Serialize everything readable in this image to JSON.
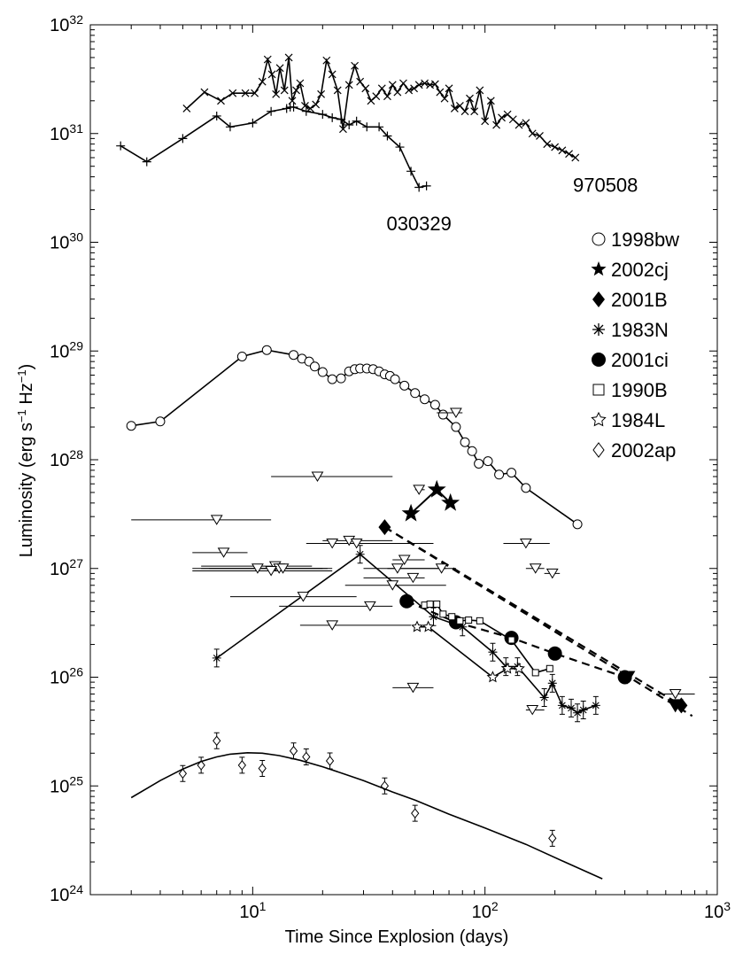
{
  "chart_data": {
    "type": "scatter",
    "xlabel": "Time Since Explosion  (days)",
    "ylabel_base": "Luminosity  (erg s",
    "ylabel_exp1": "−1",
    "ylabel_mid": " Hz",
    "ylabel_exp2": "−1",
    "ylabel_end": ")",
    "xscale": "log",
    "yscale": "log",
    "xlim": [
      2,
      1000
    ],
    "ylim": [
      1e+24,
      1e+32
    ],
    "x_ticks": [
      {
        "value": 10,
        "base": "10",
        "exp": "1"
      },
      {
        "value": 100,
        "base": "10",
        "exp": "2"
      },
      {
        "value": 1000,
        "base": "10",
        "exp": "3"
      }
    ],
    "y_ticks": [
      {
        "value": 1e+24,
        "base": "10",
        "exp": "24"
      },
      {
        "value": 1e+25,
        "base": "10",
        "exp": "25"
      },
      {
        "value": 1e+26,
        "base": "10",
        "exp": "26"
      },
      {
        "value": 1e+27,
        "base": "10",
        "exp": "27"
      },
      {
        "value": 1e+28,
        "base": "10",
        "exp": "28"
      },
      {
        "value": 1e+29,
        "base": "10",
        "exp": "29"
      },
      {
        "value": 1e+30,
        "base": "10",
        "exp": "30"
      },
      {
        "value": 1e+31,
        "base": "10",
        "exp": "31"
      },
      {
        "value": 1e+32,
        "base": "10",
        "exp": "32"
      }
    ],
    "annotations": [
      {
        "text": "970508",
        "x": 330,
        "y": 3.4e+30
      },
      {
        "text": "030329",
        "x": 52,
        "y": 1.5e+30
      }
    ],
    "legend": [
      {
        "label": "1998bw",
        "marker": "circle-open"
      },
      {
        "label": "2002cj",
        "marker": "star-filled"
      },
      {
        "label": "2001B",
        "marker": "diamond-filled"
      },
      {
        "label": "1983N",
        "marker": "asterisk"
      },
      {
        "label": "2001ci",
        "marker": "circle-filled"
      },
      {
        "label": "1990B",
        "marker": "square-open"
      },
      {
        "label": "1984L",
        "marker": "star-open"
      },
      {
        "label": "2002ap",
        "marker": "diamond-open"
      }
    ],
    "legend_position": "right",
    "series": [
      {
        "name": "970508",
        "marker": "x",
        "line": "solid",
        "x": [
          5.2,
          6.2,
          7.3,
          8.2,
          9.3,
          10.2,
          11.0,
          11.6,
          12.1,
          12.6,
          13.1,
          13.7,
          14.3,
          14.8,
          15.4,
          16.0,
          16.8,
          17.7,
          18.7,
          19.7,
          20.8,
          22.0,
          23.2,
          24.5,
          26.0,
          27.5,
          29.0,
          30.6,
          32.3,
          34.0,
          36.0,
          38.0,
          40.0,
          42.0,
          44.5,
          47.0,
          49.5,
          52.0,
          55.0,
          58.0,
          61.0,
          64.0,
          67.0,
          70.0,
          74.0,
          78.0,
          82.0,
          86.0,
          90.0,
          95.0,
          100.0,
          106.0,
          112.0,
          118.0,
          125.0,
          132.0,
          140.0,
          150.0,
          160.0,
          172.0,
          185.0,
          200.0,
          215.0,
          230.0,
          245.0
        ],
        "y": [
          1.7e+31,
          2.4e+31,
          2e+31,
          2.35e+31,
          2.35e+31,
          2.35e+31,
          3e+31,
          4.8e+31,
          3.5e+31,
          2.3e+31,
          4e+31,
          2.5e+31,
          5e+31,
          2e+31,
          2.5e+31,
          2.9e+31,
          1.8e+31,
          1.7e+31,
          1.85e+31,
          2.3e+31,
          4.7e+31,
          3.5e+31,
          2.5e+31,
          1.1e+31,
          2.8e+31,
          4.2e+31,
          3e+31,
          2.6e+31,
          2e+31,
          2.2e+31,
          2.6e+31,
          2.2e+31,
          2.8e+31,
          2.4e+31,
          2.9e+31,
          2.5e+31,
          2.6e+31,
          2.8e+31,
          2.9e+31,
          2.8e+31,
          2.85e+31,
          2.4e+31,
          2.1e+31,
          2.6e+31,
          1.7e+31,
          1.8e+31,
          1.6e+31,
          2.1e+31,
          1.6e+31,
          2.5e+31,
          1.3e+31,
          2e+31,
          1.2e+31,
          1.4e+31,
          1.5e+31,
          1.35e+31,
          1.2e+31,
          1.25e+31,
          1e+31,
          9.5e+30,
          8e+30,
          7.5e+30,
          7e+30,
          6.5e+30,
          6e+30
        ]
      },
      {
        "name": "030329",
        "marker": "plus",
        "line": "solid",
        "x": [
          2.7,
          3.5,
          5.0,
          7.0,
          8.0,
          10.0,
          12.0,
          14.0,
          14.5,
          15.0,
          17.0,
          20.0,
          22.0,
          24.0,
          26.0,
          28.0,
          31.0,
          35.0,
          38.0,
          43.0,
          48.0,
          52.0,
          56.0
        ],
        "y": [
          7.7e+30,
          5.5e+30,
          9e+30,
          1.45e+31,
          1.15e+31,
          1.25e+31,
          1.6e+31,
          1.7e+31,
          1.75e+31,
          1.75e+31,
          1.6e+31,
          1.5e+31,
          1.4e+31,
          1.35e+31,
          1.2e+31,
          1.3e+31,
          1.15e+31,
          1.15e+31,
          9.5e+30,
          7.5e+30,
          4.5e+30,
          3.2e+30,
          3.3e+30
        ]
      },
      {
        "name": "1998bw",
        "marker": "circle-open",
        "line": "solid",
        "x": [
          3.0,
          4.0,
          9.0,
          11.5,
          15.0,
          16.3,
          17.5,
          18.5,
          20.0,
          22.0,
          24.0,
          26.0,
          27.5,
          29.0,
          31.0,
          33.0,
          35.0,
          37.0,
          39.0,
          41.0,
          45.0,
          50.0,
          55.0,
          61.0,
          66.0,
          75.0,
          82.0,
          88.0,
          94.0,
          103.0,
          115.0,
          130.0,
          150.0,
          250.0
        ],
        "y": [
          2.05e+28,
          2.25e+28,
          8.9e+28,
          1.02e+29,
          9.2e+28,
          8.5e+28,
          8e+28,
          7.2e+28,
          6.4e+28,
          5.5e+28,
          5.6e+28,
          6.5e+28,
          6.8e+28,
          6.9e+28,
          6.9e+28,
          6.8e+28,
          6.5e+28,
          6.1e+28,
          5.9e+28,
          5.5e+28,
          4.8e+28,
          4.1e+28,
          3.6e+28,
          3.2e+28,
          2.6e+28,
          2e+28,
          1.45e+28,
          1.2e+28,
          9.2e+27,
          9.7e+27,
          7.3e+27,
          7.6e+27,
          5.5e+27,
          2.55e+27
        ]
      },
      {
        "name": "2002cj",
        "marker": "star-filled",
        "line": "solid",
        "x": [
          48,
          62,
          71
        ],
        "y": [
          3.2e+27,
          5.3e+27,
          4e+27
        ]
      },
      {
        "name": "2001B",
        "marker": "diamond-filled",
        "line": "dashed",
        "x": [
          37,
          700
        ],
        "y": [
          2.4e+27,
          5.5e+25
        ]
      },
      {
        "name": "2001B-limits",
        "marker": "triangle-filled",
        "line": "none",
        "x": [
          410,
          660
        ],
        "y": [
          1e+26,
          5.5e+25
        ]
      },
      {
        "name": "2001B-trend",
        "marker": "none",
        "line": "dashed",
        "x": [
          37,
          780
        ],
        "y": [
          2.4e+27,
          4.4e+25
        ]
      },
      {
        "name": "1983N",
        "marker": "asterisk",
        "line": "solid",
        "x": [
          7.0,
          29.0,
          60.0,
          80.0,
          108.0,
          123.0,
          138.0,
          180.0,
          195.0,
          215.0,
          235.0,
          250.0,
          265.0,
          300.0
        ],
        "y": [
          1.5e+26,
          1.35e+27,
          3.6e+26,
          2.9e+26,
          1.7e+26,
          1.25e+26,
          1.25e+26,
          6.5e+25,
          8.8e+25,
          5.5e+25,
          5.2e+25,
          4.7e+25,
          5e+25,
          5.5e+25
        ]
      },
      {
        "name": "2001ci",
        "marker": "circle-filled",
        "line": "dashed",
        "x": [
          46,
          75,
          130,
          200,
          400
        ],
        "y": [
          5e+26,
          3.2e+26,
          2.3e+26,
          1.65e+26,
          1e+26
        ]
      },
      {
        "name": "1990B",
        "marker": "square-open",
        "line": "solid",
        "x": [
          55,
          58,
          62,
          66,
          72,
          78,
          85,
          95,
          130,
          165,
          190
        ],
        "y": [
          4.6e+26,
          4.7e+26,
          4.7e+26,
          3.8e+26,
          3.6e+26,
          3.3e+26,
          3.35e+26,
          3.3e+26,
          2.2e+26,
          1.1e+26,
          1.2e+26
        ]
      },
      {
        "name": "1984L",
        "marker": "star-open",
        "line": "solid",
        "x": [
          51,
          57,
          108,
          125,
          140
        ],
        "y": [
          2.9e+26,
          2.9e+26,
          1e+26,
          1.2e+26,
          1.2e+26
        ]
      },
      {
        "name": "2002ap",
        "marker": "diamond-open",
        "line": "none",
        "x": [
          5.0,
          6.0,
          7.0,
          9.0,
          11.0,
          15.0,
          17.0,
          21.5,
          37.0,
          50.0,
          195.0
        ],
        "y": [
          1.3e+25,
          1.55e+25,
          2.6e+25,
          1.55e+25,
          1.45e+25,
          2.1e+25,
          1.85e+25,
          1.7e+25,
          1e+25,
          5.6e+24,
          3.3e+24
        ]
      },
      {
        "name": "2002ap-model",
        "marker": "none",
        "line": "solid",
        "x": [
          3.0,
          4.0,
          5.0,
          6.0,
          7.0,
          8.0,
          9.5,
          11.0,
          13.0,
          16.0,
          20.0,
          25.0,
          30.0,
          40.0,
          50.0,
          70.0,
          100.0,
          150.0,
          220.0,
          320.0
        ],
        "y": [
          7.8e+24,
          1.12e+25,
          1.43e+25,
          1.68e+25,
          1.85e+25,
          1.96e+25,
          2.02e+25,
          2e+25,
          1.9e+25,
          1.72e+25,
          1.5e+25,
          1.28e+25,
          1.12e+25,
          8.8e+24,
          7.4e+24,
          5.5e+24,
          4.1e+24,
          2.9e+24,
          2e+24,
          1.4e+24
        ]
      },
      {
        "name": "upper-limits",
        "marker": "triangle-open",
        "line": "none",
        "x": [
          7.0,
          7.5,
          10.5,
          12.5,
          13.0,
          13.5,
          12.0,
          16.5,
          19.0,
          22.0,
          22.0,
          26.0,
          28.0,
          32.0,
          40.0,
          49.0,
          49.0,
          42.0,
          45.0,
          52.0,
          65.0,
          75.0,
          150.0,
          165.0,
          160.0,
          195.0,
          660.0
        ],
        "y": [
          2.8e+27,
          1.4e+27,
          1e+27,
          1.05e+27,
          1e+27,
          1e+27,
          9.5e+26,
          5.5e+26,
          7e+27,
          1.7e+27,
          3e+26,
          1.8e+27,
          1.7e+27,
          4.5e+26,
          7e+26,
          8e+25,
          8.2e+26,
          1e+27,
          1.2e+27,
          5.3e+27,
          1e+27,
          2.7e+28,
          1.7e+27,
          1e+27,
          5e+25,
          9e+26,
          7e+25
        ]
      }
    ]
  }
}
